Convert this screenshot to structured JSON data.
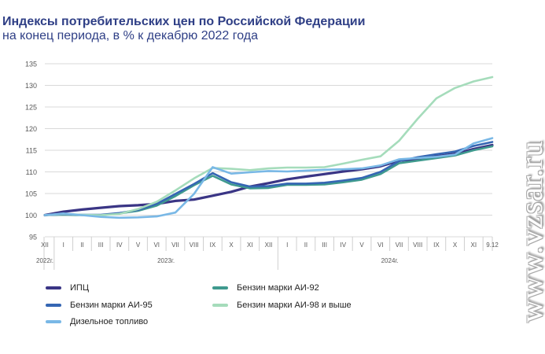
{
  "title": "Индексы потребительских цен по Российской Федерации",
  "subtitle": "на конец периода, в % к декабрю 2022 года",
  "watermark": "www.vzsar.ru",
  "chart_data": {
    "type": "line",
    "title": "Индексы потребительских цен по Российской Федерации",
    "subtitle": "на конец периода, в % к декабрю 2022 года",
    "categories": [
      "XII",
      "I",
      "II",
      "III",
      "IV",
      "V",
      "VI",
      "VII",
      "VIII",
      "IX",
      "X",
      "XI",
      "XII",
      "I",
      "II",
      "III",
      "IV",
      "V",
      "VI",
      "VII",
      "VIII",
      "IX",
      "X",
      "XI",
      "9.12"
    ],
    "year_labels": [
      {
        "label": "2022г.",
        "index": 0
      },
      {
        "label": "2023г.",
        "index": 6.5
      },
      {
        "label": "2024г.",
        "index": 18.5
      }
    ],
    "ylim": [
      95,
      135
    ],
    "yticks": [
      95,
      100,
      105,
      110,
      115,
      120,
      125,
      130,
      135
    ],
    "grid": true,
    "legend_position": "bottom",
    "series": [
      {
        "name": "ИПЦ",
        "color": "#3a3585",
        "width": 3.2,
        "values": [
          100,
          100.8,
          101.3,
          101.7,
          102.1,
          102.3,
          102.6,
          103.3,
          103.6,
          104.5,
          105.4,
          106.6,
          107.4,
          108.3,
          108.9,
          109.5,
          110.1,
          110.6,
          111.3,
          112.6,
          112.9,
          113.6,
          114.2,
          115.3,
          116.2
        ]
      },
      {
        "name": "Бензин марки АИ-92",
        "color": "#3f9a8e",
        "width": 2.6,
        "values": [
          100,
          100.1,
          100.0,
          100.0,
          100.4,
          101.0,
          102.2,
          104.4,
          106.9,
          109.1,
          107.1,
          106.2,
          106.3,
          107.0,
          107.0,
          107.1,
          107.6,
          108.2,
          109.5,
          112.0,
          112.6,
          113.2,
          113.8,
          115.0,
          115.9
        ]
      },
      {
        "name": "Бензин марки АИ-95",
        "color": "#3566b3",
        "width": 2.6,
        "values": [
          100,
          100.2,
          100.1,
          100.1,
          100.5,
          101.2,
          102.6,
          104.9,
          107.2,
          109.7,
          107.6,
          106.6,
          106.7,
          107.3,
          107.3,
          107.5,
          108.0,
          108.6,
          110.0,
          112.5,
          113.4,
          114.1,
          114.7,
          116.0,
          116.9
        ]
      },
      {
        "name": "Бензин марки АИ-98 и выше",
        "color": "#a5dcbb",
        "width": 2.6,
        "values": [
          100,
          100.3,
          100.1,
          100.0,
          100.3,
          101.4,
          103.1,
          105.7,
          108.5,
          110.9,
          110.7,
          110.4,
          110.8,
          111.0,
          111.0,
          111.1,
          111.9,
          112.8,
          113.6,
          117.2,
          122.3,
          127.0,
          129.4,
          130.9,
          131.9
        ]
      },
      {
        "name": "Дизельное топливо",
        "color": "#79b8e6",
        "width": 2.6,
        "values": [
          100,
          100.4,
          100.0,
          99.6,
          99.4,
          99.5,
          99.7,
          100.6,
          104.9,
          111.1,
          109.6,
          109.9,
          110.2,
          110.1,
          110.3,
          110.5,
          110.6,
          110.8,
          111.5,
          112.9,
          113.2,
          113.5,
          114.0,
          116.6,
          117.8
        ]
      }
    ]
  }
}
